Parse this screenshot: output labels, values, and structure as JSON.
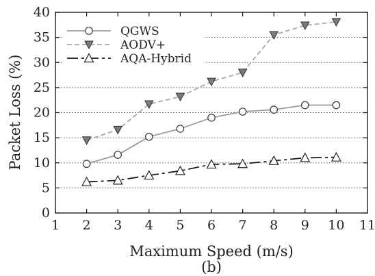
{
  "chart_data": {
    "type": "line",
    "title": "",
    "subtitle": "(b)",
    "xlabel": "Maximum Speed (m/s)",
    "ylabel": "Packet Loss (%)",
    "xlim": [
      1,
      11
    ],
    "ylim": [
      0,
      40
    ],
    "xticks": [
      "1",
      "2",
      "3",
      "4",
      "5",
      "6",
      "7",
      "8",
      "9",
      "10",
      "11"
    ],
    "yticks": [
      "0",
      "5",
      "10",
      "15",
      "20",
      "25",
      "30",
      "35",
      "40"
    ],
    "grid": "horizontal dotted",
    "legend_position": "top-left",
    "x": [
      2,
      3,
      4,
      5,
      6,
      7,
      8,
      9,
      10
    ],
    "series": [
      {
        "name": "QGWS",
        "values": [
          9.8,
          11.6,
          15.2,
          16.8,
          19.0,
          20.2,
          20.6,
          21.5,
          21.5
        ],
        "color": "#9a9a9a",
        "line": "solid",
        "marker": "circle-open"
      },
      {
        "name": "AODV+",
        "values": [
          14.5,
          16.6,
          21.7,
          23.2,
          26.2,
          28.0,
          35.5,
          37.4,
          38.1
        ],
        "color": "#a8a8a8",
        "line": "dashed",
        "marker": "triangle-down-filled"
      },
      {
        "name": "AQA-Hybrid",
        "values": [
          6.2,
          6.5,
          7.5,
          8.4,
          9.7,
          9.8,
          10.4,
          11.0,
          11.1
        ],
        "color": "#1a1a1a",
        "line": "dash-long",
        "marker": "triangle-up-open"
      }
    ]
  }
}
